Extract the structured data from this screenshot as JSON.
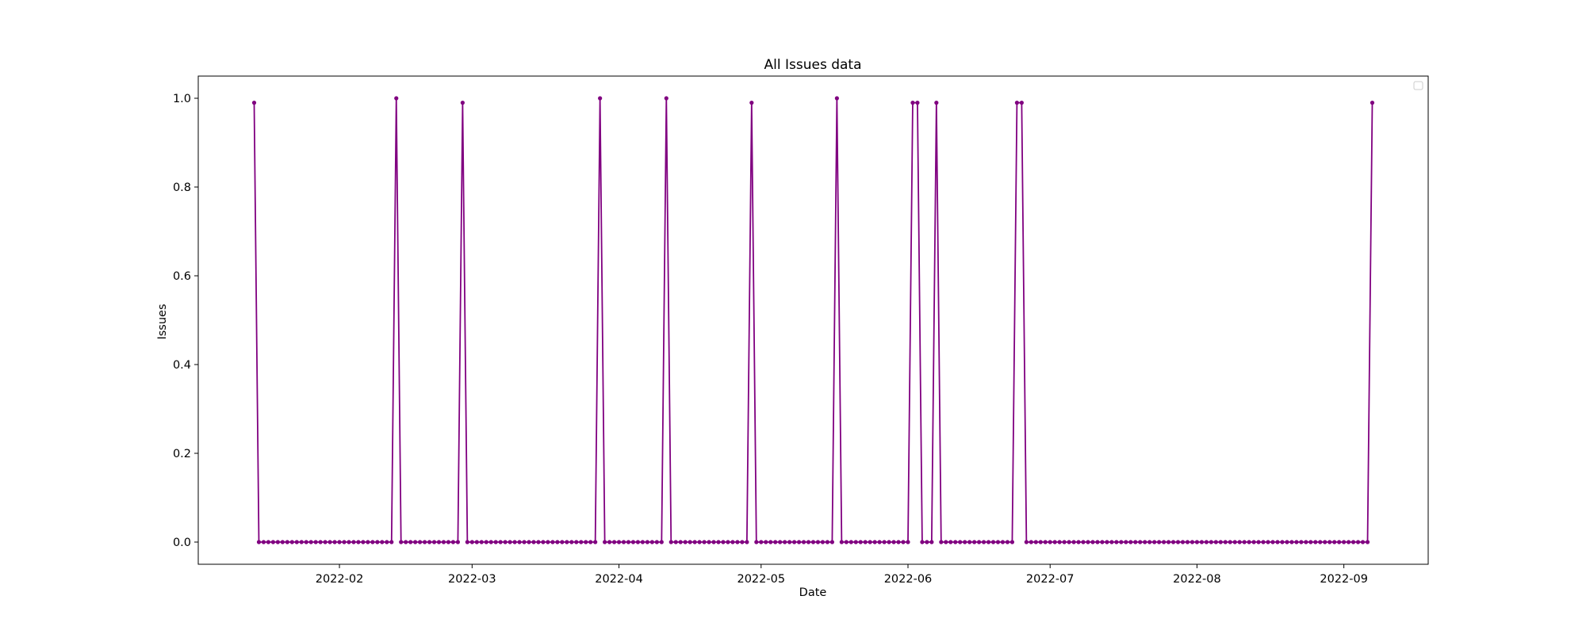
{
  "chart_data": {
    "type": "line",
    "title": "All Issues data",
    "xlabel": "Date",
    "ylabel": "Issues",
    "x_start": "2022-01-14",
    "x_end": "2022-09-07",
    "ylim": [
      -0.05,
      1.05
    ],
    "yticks": [
      0.0,
      0.2,
      0.4,
      0.6,
      0.8,
      1.0
    ],
    "ytick_labels": [
      "0.0",
      "0.2",
      "0.4",
      "0.6",
      "0.8",
      "1.0"
    ],
    "xticks": [
      "2022-02-01",
      "2022-03-01",
      "2022-04-01",
      "2022-05-01",
      "2022-06-01",
      "2022-07-01",
      "2022-08-01",
      "2022-09-01"
    ],
    "xtick_labels": [
      "2022-02",
      "2022-03",
      "2022-04",
      "2022-05",
      "2022-06",
      "2022-07",
      "2022-08",
      "2022-09"
    ],
    "grid": false,
    "legend": {
      "placement": "upper right",
      "entries": []
    },
    "series": [
      {
        "color": "#800080",
        "marker": "circle",
        "peaks": [
          {
            "date": "2022-01-14",
            "value": 0.99
          },
          {
            "date": "2022-02-13",
            "value": 1.0
          },
          {
            "date": "2022-02-27",
            "value": 0.99
          },
          {
            "date": "2022-03-28",
            "value": 1.0
          },
          {
            "date": "2022-04-11",
            "value": 1.0
          },
          {
            "date": "2022-04-29",
            "value": 0.99
          },
          {
            "date": "2022-05-17",
            "value": 1.0
          },
          {
            "date": "2022-06-02",
            "value": 0.99
          },
          {
            "date": "2022-06-03",
            "value": 0.99
          },
          {
            "date": "2022-06-07",
            "value": 0.99
          },
          {
            "date": "2022-06-24",
            "value": 0.99
          },
          {
            "date": "2022-06-25",
            "value": 0.99
          },
          {
            "date": "2022-09-07",
            "value": 0.99
          }
        ],
        "other_days_value": 0.0
      }
    ]
  }
}
